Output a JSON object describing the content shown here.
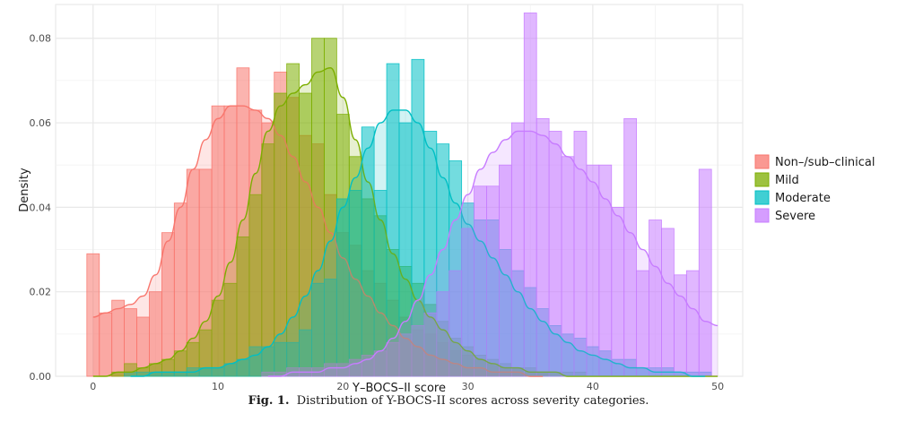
{
  "chart_data": {
    "type": "bar",
    "subtype": "overlapping histograms with density curves",
    "xlabel": "Y–BOCS–II score",
    "ylabel": "Density",
    "xlim": [
      -3,
      52
    ],
    "ylim": [
      0,
      0.088
    ],
    "x_ticks": [
      0,
      10,
      20,
      30,
      40,
      50
    ],
    "y_ticks": [
      0.0,
      0.02,
      0.04,
      0.06,
      0.08
    ],
    "y_tick_labels": [
      "0.00",
      "0.02",
      "0.04",
      "0.06",
      "0.08"
    ],
    "grid": true,
    "legend_position": "right",
    "series": [
      {
        "name": "Non–/sub–clinical",
        "color": "#F8766D",
        "bins_x": [
          0,
          1,
          2,
          3,
          4,
          5,
          6,
          7,
          8,
          9,
          10,
          11,
          12,
          13,
          14,
          15,
          16,
          17,
          18,
          19,
          20,
          21,
          22,
          23,
          24,
          25,
          26,
          27,
          28,
          29,
          30,
          31,
          32,
          33,
          34,
          35,
          36
        ],
        "values": [
          0.029,
          0.015,
          0.018,
          0.016,
          0.014,
          0.02,
          0.034,
          0.041,
          0.049,
          0.049,
          0.064,
          0.064,
          0.073,
          0.063,
          0.06,
          0.072,
          0.066,
          0.057,
          0.055,
          0.043,
          0.034,
          0.031,
          0.025,
          0.022,
          0.018,
          0.014,
          0.011,
          0.01,
          0.008,
          0.006,
          0.005,
          0.004,
          0.003,
          0.002,
          0.002,
          0.001,
          0.001
        ],
        "density": [
          0.014,
          0.015,
          0.016,
          0.017,
          0.019,
          0.024,
          0.032,
          0.04,
          0.049,
          0.056,
          0.061,
          0.064,
          0.064,
          0.063,
          0.061,
          0.057,
          0.052,
          0.046,
          0.04,
          0.034,
          0.028,
          0.023,
          0.019,
          0.015,
          0.012,
          0.009,
          0.007,
          0.005,
          0.004,
          0.003,
          0.002,
          0.002,
          0.001,
          0.001,
          0.001,
          0.0,
          0.0
        ]
      },
      {
        "name": "Mild",
        "color": "#7CAE00",
        "bins_x": [
          0,
          1,
          2,
          3,
          4,
          5,
          6,
          7,
          8,
          9,
          10,
          11,
          12,
          13,
          14,
          15,
          16,
          17,
          18,
          19,
          20,
          21,
          22,
          23,
          24,
          25,
          26,
          27,
          28,
          29,
          30,
          31,
          32,
          33,
          34,
          35,
          36,
          37,
          38,
          39,
          40,
          41,
          42,
          43,
          44,
          45,
          46,
          47,
          48,
          49,
          50
        ],
        "values": [
          0.0,
          0.0,
          0.001,
          0.003,
          0.002,
          0.003,
          0.004,
          0.006,
          0.008,
          0.011,
          0.018,
          0.022,
          0.033,
          0.043,
          0.055,
          0.067,
          0.074,
          0.067,
          0.08,
          0.08,
          0.062,
          0.052,
          0.042,
          0.038,
          0.03,
          0.026,
          0.022,
          0.017,
          0.013,
          0.009,
          0.007,
          0.005,
          0.004,
          0.003,
          0.002,
          0.002,
          0.001,
          0.001,
          0.001,
          0.001,
          0.0,
          0.0,
          0.0,
          0.0,
          0.0,
          0.0,
          0.0,
          0.0,
          0.0,
          0.0,
          0.0
        ],
        "density": [
          0.0,
          0.0,
          0.001,
          0.001,
          0.002,
          0.003,
          0.004,
          0.006,
          0.009,
          0.013,
          0.019,
          0.027,
          0.037,
          0.048,
          0.058,
          0.064,
          0.067,
          0.069,
          0.072,
          0.073,
          0.066,
          0.056,
          0.046,
          0.037,
          0.029,
          0.023,
          0.018,
          0.014,
          0.011,
          0.008,
          0.006,
          0.004,
          0.003,
          0.002,
          0.002,
          0.001,
          0.001,
          0.001,
          0.0,
          0.0,
          0.0,
          0.0,
          0.0,
          0.0,
          0.0,
          0.0,
          0.0,
          0.0,
          0.0,
          0.0,
          0.0
        ]
      },
      {
        "name": "Moderate",
        "color": "#00BFC4",
        "bins_x": [
          3,
          4,
          5,
          6,
          7,
          8,
          9,
          10,
          11,
          12,
          13,
          14,
          15,
          16,
          17,
          18,
          19,
          20,
          21,
          22,
          23,
          24,
          25,
          26,
          27,
          28,
          29,
          30,
          31,
          32,
          33,
          34,
          35,
          36,
          37,
          38,
          39,
          40,
          41,
          42,
          43,
          44,
          45,
          46,
          47,
          48,
          49
        ],
        "values": [
          0.001,
          0.001,
          0.001,
          0.001,
          0.001,
          0.002,
          0.002,
          0.002,
          0.003,
          0.004,
          0.007,
          0.007,
          0.008,
          0.008,
          0.011,
          0.022,
          0.023,
          0.042,
          0.044,
          0.059,
          0.044,
          0.074,
          0.06,
          0.075,
          0.058,
          0.055,
          0.051,
          0.041,
          0.037,
          0.037,
          0.03,
          0.025,
          0.021,
          0.016,
          0.012,
          0.01,
          0.009,
          0.007,
          0.006,
          0.004,
          0.004,
          0.002,
          0.002,
          0.002,
          0.001,
          0.001,
          0.001
        ],
        "density": [
          0.0,
          0.0,
          0.001,
          0.001,
          0.001,
          0.001,
          0.002,
          0.002,
          0.003,
          0.004,
          0.005,
          0.007,
          0.01,
          0.014,
          0.019,
          0.025,
          0.032,
          0.04,
          0.047,
          0.054,
          0.06,
          0.063,
          0.063,
          0.06,
          0.054,
          0.047,
          0.041,
          0.036,
          0.032,
          0.028,
          0.024,
          0.02,
          0.016,
          0.013,
          0.01,
          0.008,
          0.006,
          0.005,
          0.004,
          0.003,
          0.002,
          0.002,
          0.001,
          0.001,
          0.001,
          0.0,
          0.0
        ]
      },
      {
        "name": "Severe",
        "color": "#C77CFF",
        "bins_x": [
          14,
          15,
          16,
          17,
          18,
          19,
          20,
          21,
          22,
          23,
          24,
          25,
          26,
          27,
          28,
          29,
          30,
          31,
          32,
          33,
          34,
          35,
          36,
          37,
          38,
          39,
          40,
          41,
          42,
          43,
          44,
          45,
          46,
          47,
          48,
          49,
          50
        ],
        "values": [
          0.001,
          0.001,
          0.002,
          0.002,
          0.002,
          0.003,
          0.003,
          0.004,
          0.005,
          0.006,
          0.008,
          0.01,
          0.012,
          0.015,
          0.02,
          0.025,
          0.035,
          0.045,
          0.045,
          0.05,
          0.06,
          0.086,
          0.061,
          0.058,
          0.052,
          0.058,
          0.05,
          0.05,
          0.04,
          0.061,
          0.025,
          0.037,
          0.035,
          0.024,
          0.025,
          0.049,
          0.0
        ],
        "density": [
          0.0,
          0.0,
          0.001,
          0.001,
          0.001,
          0.002,
          0.002,
          0.003,
          0.004,
          0.006,
          0.009,
          0.013,
          0.018,
          0.024,
          0.03,
          0.037,
          0.043,
          0.049,
          0.053,
          0.056,
          0.058,
          0.058,
          0.057,
          0.055,
          0.052,
          0.049,
          0.046,
          0.042,
          0.038,
          0.034,
          0.03,
          0.026,
          0.022,
          0.019,
          0.016,
          0.013,
          0.012
        ]
      }
    ]
  },
  "legend": [
    {
      "label": "Non–/sub–clinical",
      "color": "#F8766D"
    },
    {
      "label": "Mild",
      "color": "#7CAE00"
    },
    {
      "label": "Moderate",
      "color": "#00BFC4"
    },
    {
      "label": "Severe",
      "color": "#C77CFF"
    }
  ],
  "caption": {
    "label": "Fig. 1.",
    "text": "Distribution of Y-BOCS-II scores across severity categories."
  }
}
